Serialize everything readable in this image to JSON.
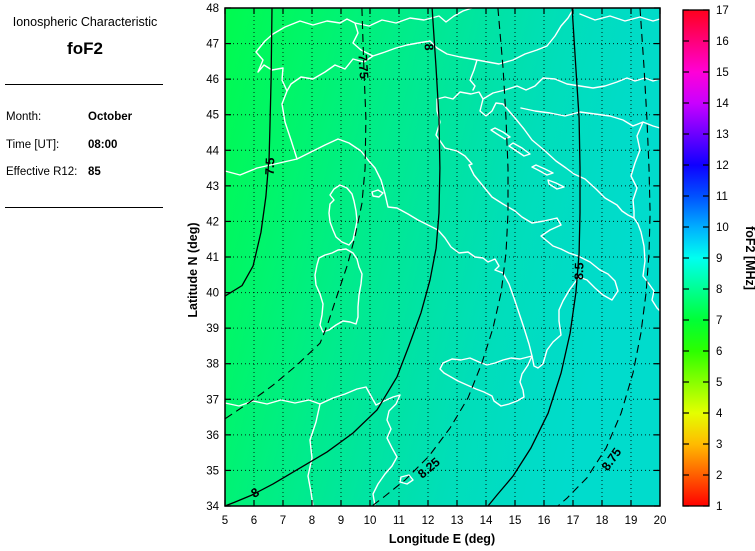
{
  "sidebar": {
    "title": "Ionospheric Characteristic",
    "characteristic": "foF2",
    "fields": [
      {
        "label": "Month:",
        "value": "October"
      },
      {
        "label": "Time [UT]:",
        "value": "08:00"
      },
      {
        "label": "Effective R12:",
        "value": "85"
      }
    ]
  },
  "chart_data": {
    "type": "contour-map",
    "xlabel": "Longitude E (deg)",
    "ylabel": "Latitude N (deg)",
    "xlim": [
      5,
      20
    ],
    "ylim": [
      34,
      48
    ],
    "x_ticks": [
      5,
      6,
      7,
      8,
      9,
      10,
      11,
      12,
      13,
      14,
      15,
      16,
      17,
      18,
      19,
      20
    ],
    "y_ticks": [
      34,
      35,
      36,
      37,
      38,
      39,
      40,
      41,
      42,
      43,
      44,
      45,
      46,
      47,
      48
    ],
    "grid": "dotted",
    "field_gradient": {
      "tilt": [
        435,
        109
      ],
      "stops": [
        {
          "offset": 0.0,
          "color": "#00fb4f"
        },
        {
          "offset": 0.21,
          "color": "#00f56c"
        },
        {
          "offset": 0.41,
          "color": "#00ec8b"
        },
        {
          "offset": 0.59,
          "color": "#00e3a5"
        },
        {
          "offset": 0.74,
          "color": "#00deb9"
        },
        {
          "offset": 0.9,
          "color": "#00dcc6"
        },
        {
          "offset": 1.0,
          "color": "#00dccc"
        }
      ]
    },
    "contours": [
      {
        "level": 7.5,
        "style": "solid",
        "points": [
          [
            6.62,
            48
          ],
          [
            6.59,
            46.0
          ],
          [
            6.55,
            44.6
          ],
          [
            6.52,
            43.8
          ],
          [
            6.41,
            42.7
          ],
          [
            6.24,
            41.7
          ],
          [
            5.97,
            40.75
          ],
          [
            5.59,
            40.2
          ],
          [
            5.0,
            39.9
          ]
        ]
      },
      {
        "level": 7.75,
        "style": "dashed",
        "points": [
          [
            9.72,
            48
          ],
          [
            9.79,
            46.3
          ],
          [
            9.86,
            44.9
          ],
          [
            9.83,
            43.5
          ],
          [
            9.72,
            42.5
          ],
          [
            9.48,
            41.56
          ],
          [
            9.21,
            40.75
          ],
          [
            8.86,
            39.9
          ],
          [
            8.55,
            39.14
          ],
          [
            8.28,
            38.58
          ],
          [
            7.48,
            37.96
          ],
          [
            6.66,
            37.4
          ],
          [
            5.86,
            36.92
          ],
          [
            5.0,
            36.45
          ]
        ]
      },
      {
        "level": 8,
        "style": "solid",
        "points": [
          [
            12.14,
            48
          ],
          [
            12.28,
            46.3
          ],
          [
            12.38,
            44.9
          ],
          [
            12.41,
            43.5
          ],
          [
            12.38,
            42.24
          ],
          [
            12.28,
            41.25
          ],
          [
            12.07,
            40.35
          ],
          [
            11.76,
            39.43
          ],
          [
            11.34,
            38.5
          ],
          [
            10.93,
            37.63
          ],
          [
            10.24,
            36.7
          ],
          [
            9.41,
            36.05
          ],
          [
            8.52,
            35.52
          ],
          [
            7.59,
            35.07
          ],
          [
            6.66,
            34.62
          ],
          [
            5.93,
            34.31
          ],
          [
            5.34,
            34.11
          ],
          [
            5.0,
            34.0
          ]
        ]
      },
      {
        "level": 8.25,
        "style": "dashed",
        "points": [
          [
            14.41,
            48
          ],
          [
            14.59,
            46.3
          ],
          [
            14.69,
            44.9
          ],
          [
            14.76,
            43.5
          ],
          [
            14.76,
            42.24
          ],
          [
            14.69,
            41.11
          ],
          [
            14.52,
            40.0
          ],
          [
            14.24,
            39.0
          ],
          [
            13.86,
            38.02
          ],
          [
            13.38,
            37.04
          ],
          [
            12.76,
            36.19
          ],
          [
            12.03,
            35.4
          ],
          [
            11.21,
            34.73
          ],
          [
            10.52,
            34.28
          ],
          [
            10.07,
            34.0
          ]
        ]
      },
      {
        "level": 8.5,
        "style": "solid",
        "points": [
          [
            16.97,
            48
          ],
          [
            17.1,
            46.3
          ],
          [
            17.21,
            44.9
          ],
          [
            17.24,
            43.5
          ],
          [
            17.24,
            42.24
          ],
          [
            17.21,
            41.11
          ],
          [
            17.1,
            40.0
          ],
          [
            16.9,
            38.86
          ],
          [
            16.59,
            37.74
          ],
          [
            16.14,
            36.61
          ],
          [
            15.55,
            35.63
          ],
          [
            14.93,
            34.84
          ],
          [
            14.38,
            34.31
          ],
          [
            14.07,
            34.0
          ]
        ]
      },
      {
        "level": 8.75,
        "style": "dashed",
        "points": [
          [
            19.31,
            48
          ],
          [
            19.45,
            46.3
          ],
          [
            19.55,
            44.9
          ],
          [
            19.62,
            43.5
          ],
          [
            19.66,
            42.24
          ],
          [
            19.62,
            41.11
          ],
          [
            19.52,
            40.0
          ],
          [
            19.34,
            38.86
          ],
          [
            19.07,
            37.74
          ],
          [
            18.66,
            36.61
          ],
          [
            18.14,
            35.63
          ],
          [
            17.48,
            34.79
          ],
          [
            16.79,
            34.22
          ],
          [
            16.48,
            34.0
          ]
        ]
      }
    ],
    "contour_labels": [
      {
        "text": "7.5",
        "lon": 6.58,
        "lat": 43.55,
        "rot": -88
      },
      {
        "text": "7.75",
        "lon": 9.74,
        "lat": 46.35,
        "rot": 86
      },
      {
        "text": "8",
        "lon": 12.0,
        "lat": 46.9,
        "rot": 88
      },
      {
        "text": "8",
        "lon": 6.05,
        "lat": 34.35,
        "rot": -30
      },
      {
        "text": "8.25",
        "lon": 12.05,
        "lat": 35.05,
        "rot": -40
      },
      {
        "text": "8.5",
        "lon": 17.24,
        "lat": 40.6,
        "rot": -88
      },
      {
        "text": "8.75",
        "lon": 18.35,
        "lat": 35.3,
        "rot": -55
      }
    ],
    "colorbar": {
      "label": "foF2 [MHz]",
      "min": 1,
      "max": 17,
      "ticks": [
        1,
        2,
        3,
        4,
        5,
        6,
        7,
        8,
        9,
        10,
        11,
        12,
        13,
        14,
        15,
        16,
        17
      ],
      "stop_colors": [
        "#FF0000",
        "#FF5E00",
        "#FFBB00",
        "#E4FF00",
        "#88FF00",
        "#2CFF00",
        "#00FF36",
        "#00FF93",
        "#00FFF0",
        "#00AEFF",
        "#0051FF",
        "#0F00FF",
        "#6C00FF",
        "#C900FF",
        "#FF00D7",
        "#FF007A",
        "#FF001D"
      ]
    },
    "colors": {
      "coastline": "#ffffff",
      "contour_line": "#000000"
    }
  }
}
